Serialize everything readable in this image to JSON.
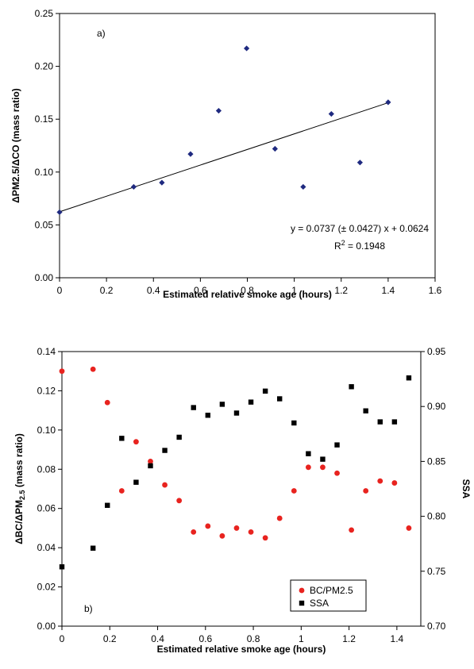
{
  "chart_data": [
    {
      "type": "scatter",
      "panel_label": "a)",
      "xlabel": "Estimated relative smoke age (hours)",
      "ylabel": "ΔPM2.5/ΔCO (mass ratio)",
      "xlim": [
        0,
        1.6
      ],
      "ylim": [
        0,
        0.25
      ],
      "xticks": [
        "0",
        "0.2",
        "0.4",
        "0.6",
        "0.8",
        "1",
        "1.2",
        "1.4",
        "1.6"
      ],
      "yticks": [
        "0.00",
        "0.05",
        "0.10",
        "0.15",
        "0.20",
        "0.25"
      ],
      "grid": false,
      "series": [
        {
          "color": "#1f2a80",
          "marker": "diamond",
          "x": [
            0,
            0.316,
            0.436,
            0.558,
            0.678,
            0.797,
            0.918,
            1.038,
            1.158,
            1.28,
            1.4
          ],
          "y": [
            0.062,
            0.086,
            0.09,
            0.117,
            0.158,
            0.217,
            0.122,
            0.086,
            0.155,
            0.109,
            0.166
          ]
        }
      ],
      "trendline": {
        "slope": 0.0737,
        "intercept": 0.0624,
        "x_range": [
          0,
          1.4
        ]
      },
      "equation": "y = 0.0737 (± 0.0427) x + 0.0624",
      "r2_prefix": "R",
      "r2_sup": "2",
      "r2_value": " = 0.1948"
    },
    {
      "type": "scatter",
      "panel_label": "b)",
      "xlabel": "Estimated relative smoke age (hours)",
      "ylabel_main": "ΔBC/ΔPM",
      "ylabel_sub": "2.5",
      "ylabel_tail": " (mass ratio)",
      "y2label": "SSA",
      "xlim": [
        0,
        1.5
      ],
      "ylim": [
        0,
        0.14
      ],
      "y2lim": [
        0.7,
        0.95
      ],
      "xticks": [
        "0",
        "0.2",
        "0.4",
        "0.6",
        "0.8",
        "1",
        "1.2",
        "1.4"
      ],
      "yticks": [
        "0.00",
        "0.02",
        "0.04",
        "0.06",
        "0.08",
        "0.10",
        "0.12",
        "0.14"
      ],
      "y2ticks": [
        "0.70",
        "0.75",
        "0.80",
        "0.85",
        "0.90",
        "0.95"
      ],
      "grid": false,
      "legend_position": "bottom-right",
      "series": [
        {
          "name": "BC/PM2.5",
          "color": "#e8231f",
          "marker": "circle",
          "axis": "left",
          "x": [
            0,
            0.13,
            0.19,
            0.25,
            0.31,
            0.37,
            0.43,
            0.49,
            0.55,
            0.61,
            0.67,
            0.73,
            0.79,
            0.85,
            0.91,
            0.97,
            1.03,
            1.09,
            1.15,
            1.21,
            1.27,
            1.33,
            1.39,
            1.45
          ],
          "y": [
            0.13,
            0.131,
            0.114,
            0.069,
            0.094,
            0.084,
            0.072,
            0.064,
            0.048,
            0.051,
            0.046,
            0.05,
            0.048,
            0.045,
            0.055,
            0.069,
            0.081,
            0.081,
            0.078,
            0.049,
            0.069,
            0.074,
            0.073,
            0.05
          ]
        },
        {
          "name": "SSA",
          "color": "#000000",
          "marker": "square",
          "axis": "right",
          "x": [
            0,
            0.13,
            0.19,
            0.25,
            0.31,
            0.37,
            0.43,
            0.49,
            0.55,
            0.61,
            0.67,
            0.73,
            0.79,
            0.85,
            0.91,
            0.97,
            1.03,
            1.09,
            1.15,
            1.21,
            1.27,
            1.33,
            1.39,
            1.45
          ],
          "y": [
            0.754,
            0.771,
            0.81,
            0.871,
            0.831,
            0.846,
            0.86,
            0.872,
            0.899,
            0.892,
            0.902,
            0.894,
            0.904,
            0.914,
            0.907,
            0.885,
            0.857,
            0.852,
            0.865,
            0.918,
            0.896,
            0.886,
            0.886,
            0.926
          ]
        }
      ]
    }
  ]
}
